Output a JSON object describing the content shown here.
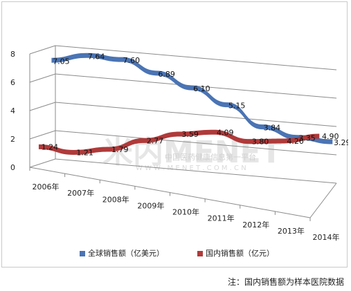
{
  "chart_data": {
    "type": "line",
    "categories": [
      "2006年",
      "2007年",
      "2008年",
      "2009年",
      "2010年",
      "2011年",
      "2012年",
      "2013年",
      "2014年"
    ],
    "series": [
      {
        "name": "全球销售额（亿美元）",
        "values": [
          7.05,
          7.64,
          7.6,
          6.89,
          6.1,
          5.15,
          3.84,
          3.35,
          3.29
        ],
        "color": "#4a74b4"
      },
      {
        "name": "国内销售额（亿元）",
        "values": [
          1.24,
          1.21,
          1.79,
          2.77,
          3.59,
          4.09,
          3.8,
          4.2,
          4.9
        ],
        "color": "#b03a3a"
      }
    ],
    "y_ticks": [
      "0",
      "2",
      "4",
      "6",
      "8"
    ],
    "ylim": [
      0,
      8
    ],
    "grid": true,
    "legend": "bottom"
  },
  "watermark": {
    "main": "米内MENET",
    "sub": "中国医药健康信息第一平台",
    "url": "W W W . M E N E T . C O M . C N"
  },
  "note": "注：国内销售额为样本医院数据"
}
